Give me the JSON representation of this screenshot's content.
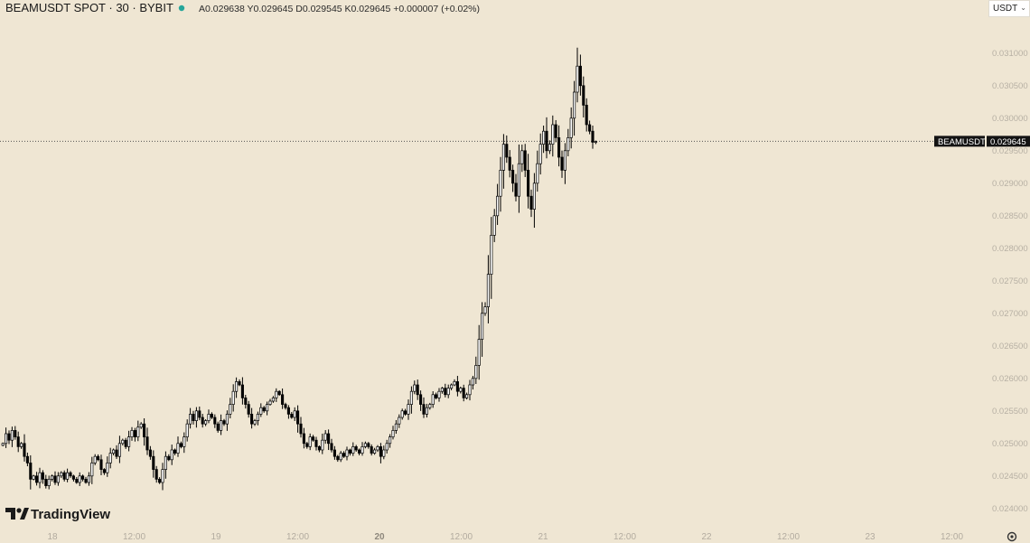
{
  "legend": {
    "title": "BEAMUSDT SPOT · 30 · BYBIT",
    "status_color": "#26a69a",
    "ohlc": "A0.029638 Y0.029645 D0.029545 K0.029645 +0.000007 (+0.02%)"
  },
  "currency": {
    "label": "USDT"
  },
  "price_tag": {
    "symbol": "BEAMUSDT",
    "price": "0.029645"
  },
  "branding": {
    "name": "TradingView"
  },
  "settings": {
    "icon": "gear-icon"
  },
  "colors": {
    "candle_up": "#ffffff",
    "candle_down": "#000000",
    "outline": "#000000",
    "background": "#efe6d3"
  },
  "chart_data": {
    "type": "candlestick",
    "title": "BEAMUSDT SPOT · 30 · BYBIT",
    "y_ticks": [
      "0.031000",
      "0.030500",
      "0.030000",
      "0.029500",
      "0.029000",
      "0.028500",
      "0.028000",
      "0.027500",
      "0.027000",
      "0.026500",
      "0.026000",
      "0.025500",
      "0.025000",
      "0.024500",
      "0.024000"
    ],
    "ylim": [
      0.0239,
      0.0314
    ],
    "x_ticks": [
      {
        "label": "18",
        "day": false
      },
      {
        "label": "12:00",
        "day": false
      },
      {
        "label": "19",
        "day": false
      },
      {
        "label": "12:00",
        "day": false
      },
      {
        "label": "20",
        "day": true
      },
      {
        "label": "12:00",
        "day": false
      },
      {
        "label": "21",
        "day": false
      },
      {
        "label": "12:00",
        "day": false
      },
      {
        "label": "22",
        "day": false
      },
      {
        "label": "12:00",
        "day": false
      },
      {
        "label": "23",
        "day": false
      },
      {
        "label": "12:00",
        "day": false
      }
    ],
    "current_price": 0.029645,
    "series": [
      {
        "name": "",
        "close": [
          0.025,
          0.02515,
          0.02505,
          0.0252,
          0.0251,
          0.02495,
          0.025,
          0.0248,
          0.0247,
          0.02445,
          0.0245,
          0.0244,
          0.02455,
          0.02445,
          0.02435,
          0.02445,
          0.0245,
          0.0244,
          0.0245,
          0.02455,
          0.02445,
          0.02455,
          0.0245,
          0.02445,
          0.0244,
          0.0245,
          0.02445,
          0.0244,
          0.0245,
          0.0247,
          0.0248,
          0.02475,
          0.0246,
          0.02455,
          0.0247,
          0.02485,
          0.0249,
          0.0248,
          0.025,
          0.02505,
          0.02495,
          0.0251,
          0.0252,
          0.0251,
          0.02525,
          0.0253,
          0.0251,
          0.0249,
          0.0248,
          0.0246,
          0.02445,
          0.0244,
          0.0246,
          0.0248,
          0.02475,
          0.0249,
          0.02485,
          0.025,
          0.02495,
          0.0251,
          0.0253,
          0.02545,
          0.02535,
          0.0255,
          0.0254,
          0.0253,
          0.02535,
          0.02545,
          0.0254,
          0.0253,
          0.0252,
          0.02535,
          0.0253,
          0.02545,
          0.0256,
          0.0258,
          0.02595,
          0.0259,
          0.0257,
          0.0256,
          0.02545,
          0.0253,
          0.02535,
          0.02545,
          0.02555,
          0.0255,
          0.0256,
          0.02565,
          0.0257,
          0.0258,
          0.02575,
          0.0256,
          0.02555,
          0.02545,
          0.0254,
          0.0255,
          0.0253,
          0.02515,
          0.025,
          0.02495,
          0.0251,
          0.02505,
          0.02495,
          0.0249,
          0.02505,
          0.02515,
          0.025,
          0.0249,
          0.0248,
          0.02475,
          0.02485,
          0.0248,
          0.0249,
          0.02485,
          0.02495,
          0.0249,
          0.02485,
          0.02495,
          0.025,
          0.02495,
          0.02485,
          0.0249,
          0.02495,
          0.0248,
          0.0249,
          0.025,
          0.0251,
          0.0252,
          0.0253,
          0.0254,
          0.0255,
          0.02545,
          0.0256,
          0.0258,
          0.0259,
          0.02575,
          0.0256,
          0.02545,
          0.02555,
          0.0256,
          0.02575,
          0.0257,
          0.0258,
          0.02585,
          0.02575,
          0.02585,
          0.0259,
          0.02595,
          0.0258,
          0.02585,
          0.0257,
          0.02575,
          0.0259,
          0.026,
          0.0262,
          0.0266,
          0.027,
          0.0271,
          0.0276,
          0.0282,
          0.0285,
          0.0288,
          0.0292,
          0.0296,
          0.0294,
          0.0292,
          0.029,
          0.0288,
          0.0293,
          0.0295,
          0.0292,
          0.0288,
          0.0286,
          0.029,
          0.0293,
          0.0296,
          0.0298,
          0.0295,
          0.0296,
          0.0299,
          0.0297,
          0.0294,
          0.0292,
          0.0295,
          0.0297,
          0.03,
          0.0304,
          0.0308,
          0.0305,
          0.0302,
          0.0299,
          0.0298,
          0.02963,
          0.02964
        ]
      }
    ]
  }
}
